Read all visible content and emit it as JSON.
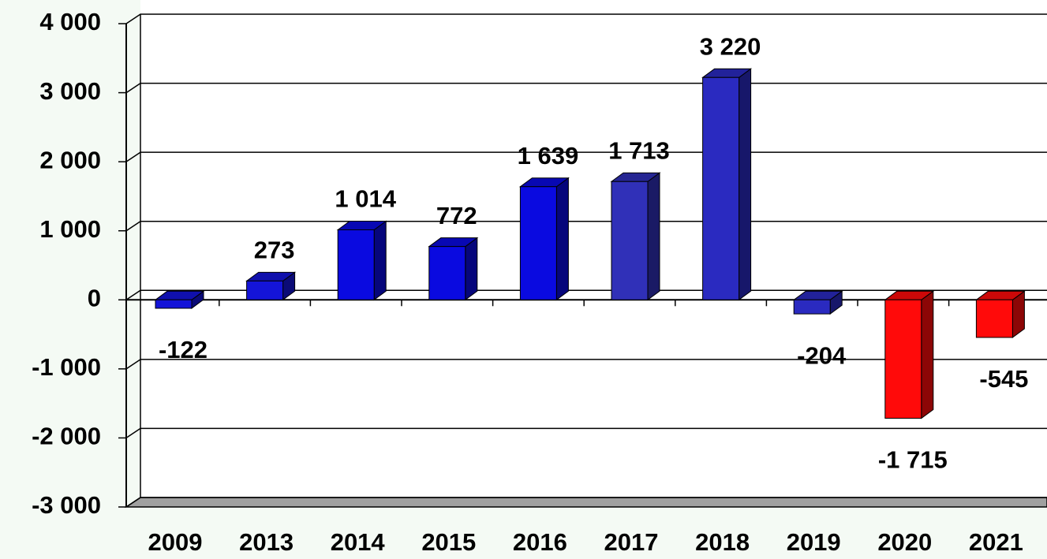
{
  "chart_data": {
    "type": "bar3d",
    "categories": [
      "2009",
      "2013",
      "2014",
      "2015",
      "2016",
      "2017",
      "2018",
      "2019",
      "2020",
      "2021"
    ],
    "values": [
      -122,
      273,
      1014,
      772,
      1639,
      1713,
      3220,
      -204,
      -1715,
      -545
    ],
    "value_labels": [
      "-122",
      "273",
      "1 014",
      "772",
      "1 639",
      "1 713",
      "3 220",
      "-204",
      "-1 715",
      "-545"
    ],
    "colors": [
      "#1414d8",
      "#1414d8",
      "#0a0ae0",
      "#0a0ae0",
      "#0a0ae0",
      "#3030b8",
      "#2a2ac0",
      "#2a2ac0",
      "#ff0a0a",
      "#ff0a0a"
    ],
    "ylim": [
      -3000,
      4000
    ],
    "yticks": [
      {
        "value": -3000,
        "label": "-3 000"
      },
      {
        "value": -2000,
        "label": "-2 000"
      },
      {
        "value": -1000,
        "label": "-1 000"
      },
      0,
      {
        "value": 1000,
        "label": "1 000"
      },
      {
        "value": 2000,
        "label": "2 000"
      },
      {
        "value": 3000,
        "label": "3 000"
      },
      {
        "value": 4000,
        "label": "4 000"
      }
    ],
    "grid": true
  }
}
